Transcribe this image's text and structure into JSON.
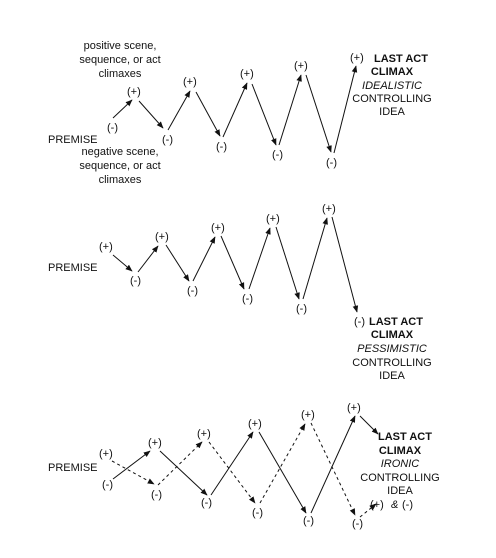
{
  "signs": {
    "plus": "(+)",
    "minus": "(-)",
    "both_plus": "(+)",
    "both_amp": "&",
    "both_minus": "(-)"
  },
  "idealistic": {
    "positive_note": [
      "positive scene,",
      "sequence, or act",
      "climaxes"
    ],
    "negative_note": [
      "negative scene,",
      "sequence, or act",
      "climaxes"
    ],
    "premise": "PREMISE",
    "climax": [
      "LAST ACT",
      "CLIMAX"
    ],
    "kind": "IDEALISTIC",
    "controlling": [
      "CONTROLLING",
      "IDEA"
    ]
  },
  "pessimistic": {
    "premise": "PREMISE",
    "climax": [
      "LAST ACT",
      "CLIMAX"
    ],
    "kind": "PESSIMISTIC",
    "controlling": [
      "CONTROLLING",
      "IDEA"
    ]
  },
  "ironic": {
    "premise": "PREMISE",
    "climax": [
      "LAST ACT",
      "CLIMAX"
    ],
    "kind": "IRONIC",
    "controlling": [
      "CONTROLLING",
      "IDEA"
    ]
  }
}
